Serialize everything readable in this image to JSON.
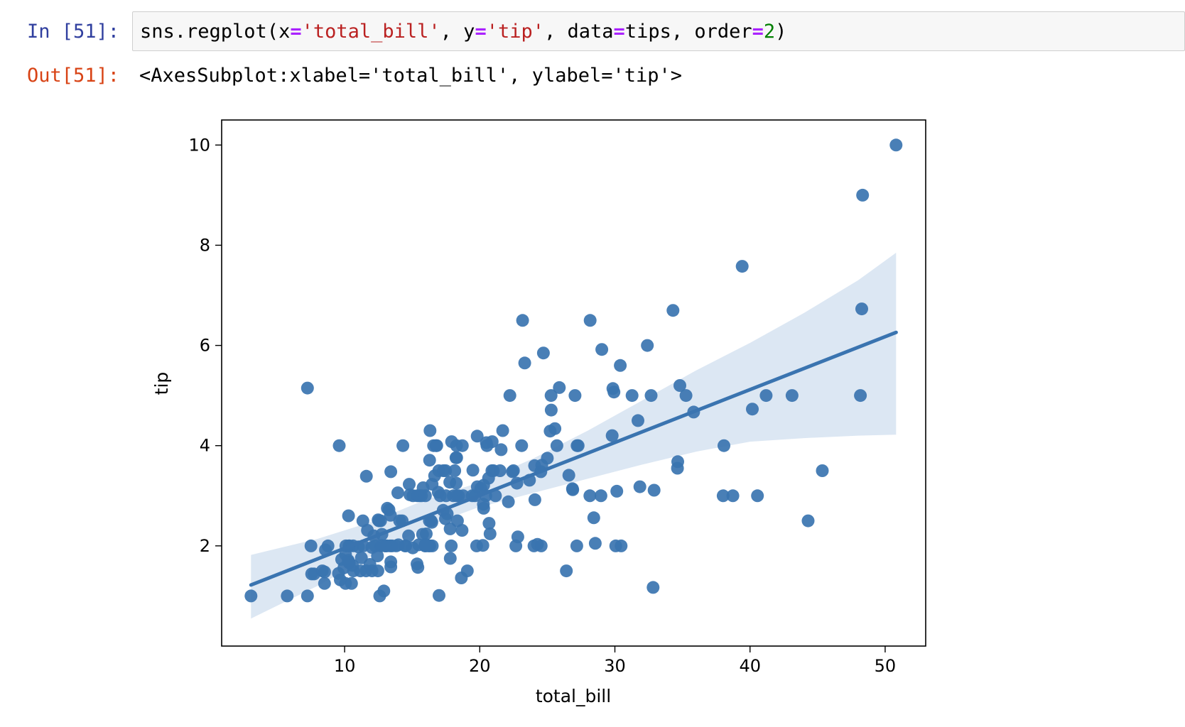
{
  "input_cell": {
    "prompt": "In [51]:",
    "code_tokens": [
      {
        "t": "sns.regplot(x",
        "c": "plain"
      },
      {
        "t": "=",
        "c": "op"
      },
      {
        "t": "'total_bill'",
        "c": "str"
      },
      {
        "t": ", y",
        "c": "plain"
      },
      {
        "t": "=",
        "c": "op"
      },
      {
        "t": "'tip'",
        "c": "str"
      },
      {
        "t": ", data",
        "c": "plain"
      },
      {
        "t": "=",
        "c": "op"
      },
      {
        "t": "tips, order",
        "c": "plain"
      },
      {
        "t": "=",
        "c": "op"
      },
      {
        "t": "2",
        "c": "num"
      },
      {
        "t": ")",
        "c": "plain"
      }
    ]
  },
  "output_cell": {
    "prompt": "Out[51]:",
    "text": "<AxesSubplot:xlabel='total_bill', ylabel='tip'>"
  },
  "colors": {
    "point": "#3a74b0",
    "line": "#3a74b0",
    "band": "#dce7f3"
  },
  "chart_data": {
    "type": "scatter",
    "xlabel": "total_bill",
    "ylabel": "tip",
    "xlim": [
      0.9,
      53.0
    ],
    "ylim": [
      0.0,
      10.5
    ],
    "xticks": [
      10,
      20,
      30,
      40,
      50
    ],
    "yticks": [
      2,
      4,
      6,
      8,
      10
    ],
    "grid": false,
    "points": [
      [
        3.07,
        1.0
      ],
      [
        5.75,
        1.0
      ],
      [
        7.25,
        1.0
      ],
      [
        7.25,
        5.15
      ],
      [
        7.51,
        2.0
      ],
      [
        7.56,
        1.44
      ],
      [
        7.74,
        1.44
      ],
      [
        8.35,
        1.5
      ],
      [
        8.51,
        1.25
      ],
      [
        8.52,
        1.48
      ],
      [
        8.58,
        1.92
      ],
      [
        8.77,
        2.0
      ],
      [
        9.55,
        1.45
      ],
      [
        9.6,
        4.0
      ],
      [
        9.68,
        1.32
      ],
      [
        9.78,
        1.73
      ],
      [
        9.94,
        1.56
      ],
      [
        10.07,
        1.83
      ],
      [
        10.07,
        1.25
      ],
      [
        10.09,
        2.0
      ],
      [
        10.27,
        1.71
      ],
      [
        10.29,
        2.6
      ],
      [
        10.33,
        1.67
      ],
      [
        10.33,
        2.0
      ],
      [
        10.34,
        1.66
      ],
      [
        10.34,
        2.0
      ],
      [
        10.51,
        1.25
      ],
      [
        10.59,
        1.61
      ],
      [
        10.63,
        2.0
      ],
      [
        10.65,
        1.5
      ],
      [
        11.02,
        1.98
      ],
      [
        11.17,
        1.5
      ],
      [
        11.24,
        1.76
      ],
      [
        11.35,
        2.5
      ],
      [
        11.38,
        2.0
      ],
      [
        11.59,
        1.5
      ],
      [
        11.61,
        3.39
      ],
      [
        11.69,
        2.31
      ],
      [
        11.87,
        1.63
      ],
      [
        12.02,
        1.97
      ],
      [
        12.03,
        1.5
      ],
      [
        12.16,
        2.2
      ],
      [
        12.26,
        2.0
      ],
      [
        12.43,
        1.8
      ],
      [
        12.46,
        1.5
      ],
      [
        12.48,
        2.52
      ],
      [
        12.54,
        2.5
      ],
      [
        12.6,
        1.0
      ],
      [
        12.66,
        2.5
      ],
      [
        12.69,
        2.0
      ],
      [
        12.74,
        2.01
      ],
      [
        12.76,
        2.23
      ],
      [
        12.9,
        1.1
      ],
      [
        13.0,
        2.0
      ],
      [
        13.03,
        2.0
      ],
      [
        13.13,
        2.0
      ],
      [
        13.16,
        2.75
      ],
      [
        13.28,
        2.72
      ],
      [
        13.37,
        2.0
      ],
      [
        13.39,
        2.61
      ],
      [
        13.42,
        1.58
      ],
      [
        13.42,
        3.48
      ],
      [
        13.42,
        1.68
      ],
      [
        13.51,
        2.0
      ],
      [
        13.81,
        2.0
      ],
      [
        13.94,
        3.06
      ],
      [
        13.98,
        2.02
      ],
      [
        14.07,
        2.5
      ],
      [
        14.26,
        2.5
      ],
      [
        14.31,
        4.0
      ],
      [
        14.48,
        2.0
      ],
      [
        14.52,
        2.0
      ],
      [
        14.73,
        2.2
      ],
      [
        14.78,
        3.23
      ],
      [
        14.83,
        3.02
      ],
      [
        15.04,
        1.96
      ],
      [
        15.06,
        3.0
      ],
      [
        15.36,
        1.64
      ],
      [
        15.38,
        3.0
      ],
      [
        15.42,
        1.57
      ],
      [
        15.48,
        2.02
      ],
      [
        15.53,
        3.0
      ],
      [
        15.69,
        3.0
      ],
      [
        15.77,
        2.23
      ],
      [
        15.81,
        3.16
      ],
      [
        15.95,
        2.0
      ],
      [
        15.98,
        2.03
      ],
      [
        15.98,
        3.0
      ],
      [
        16.0,
        2.0
      ],
      [
        16.04,
        2.24
      ],
      [
        16.21,
        2.0
      ],
      [
        16.27,
        2.5
      ],
      [
        16.29,
        3.71
      ],
      [
        16.31,
        2.0
      ],
      [
        16.32,
        4.3
      ],
      [
        16.4,
        2.5
      ],
      [
        16.45,
        2.47
      ],
      [
        16.47,
        3.23
      ],
      [
        16.49,
        2.0
      ],
      [
        16.58,
        4.0
      ],
      [
        16.66,
        3.4
      ],
      [
        16.76,
        4.0
      ],
      [
        16.82,
        4.0
      ],
      [
        16.93,
        3.07
      ],
      [
        16.97,
        3.5
      ],
      [
        16.99,
        1.01
      ],
      [
        17.07,
        3.0
      ],
      [
        17.29,
        2.71
      ],
      [
        17.31,
        3.5
      ],
      [
        17.46,
        2.54
      ],
      [
        17.47,
        3.5
      ],
      [
        17.51,
        3.0
      ],
      [
        17.59,
        2.64
      ],
      [
        17.78,
        3.27
      ],
      [
        17.81,
        2.34
      ],
      [
        17.82,
        1.75
      ],
      [
        17.89,
        2.0
      ],
      [
        17.92,
        4.08
      ],
      [
        18.04,
        3.0
      ],
      [
        18.15,
        3.5
      ],
      [
        18.24,
        3.76
      ],
      [
        18.26,
        3.25
      ],
      [
        18.28,
        4.0
      ],
      [
        18.29,
        3.76
      ],
      [
        18.29,
        3.0
      ],
      [
        18.35,
        2.5
      ],
      [
        18.43,
        3.0
      ],
      [
        18.64,
        1.36
      ],
      [
        18.69,
        2.31
      ],
      [
        18.71,
        4.0
      ],
      [
        18.78,
        3.0
      ],
      [
        19.08,
        1.5
      ],
      [
        19.44,
        3.0
      ],
      [
        19.49,
        3.51
      ],
      [
        19.65,
        3.0
      ],
      [
        19.77,
        2.0
      ],
      [
        19.81,
        4.19
      ],
      [
        19.82,
        3.18
      ],
      [
        20.08,
        3.15
      ],
      [
        20.23,
        2.01
      ],
      [
        20.27,
        2.83
      ],
      [
        20.29,
        2.75
      ],
      [
        20.29,
        3.21
      ],
      [
        20.45,
        3.0
      ],
      [
        20.49,
        4.06
      ],
      [
        20.53,
        4.0
      ],
      [
        20.65,
        3.35
      ],
      [
        20.69,
        2.45
      ],
      [
        20.76,
        2.24
      ],
      [
        20.9,
        3.5
      ],
      [
        20.92,
        4.08
      ],
      [
        21.01,
        3.5
      ],
      [
        21.16,
        3.0
      ],
      [
        21.5,
        3.5
      ],
      [
        21.58,
        3.92
      ],
      [
        21.7,
        4.3
      ],
      [
        22.12,
        2.88
      ],
      [
        22.23,
        5.0
      ],
      [
        22.42,
        3.48
      ],
      [
        22.49,
        3.5
      ],
      [
        22.67,
        2.0
      ],
      [
        22.75,
        3.25
      ],
      [
        22.82,
        2.18
      ],
      [
        23.1,
        4.0
      ],
      [
        23.17,
        6.5
      ],
      [
        23.33,
        5.65
      ],
      [
        23.68,
        3.31
      ],
      [
        24.01,
        2.0
      ],
      [
        24.06,
        3.6
      ],
      [
        24.08,
        2.92
      ],
      [
        24.27,
        2.03
      ],
      [
        24.52,
        3.48
      ],
      [
        24.55,
        2.0
      ],
      [
        24.59,
        3.61
      ],
      [
        24.71,
        5.85
      ],
      [
        25.0,
        3.75
      ],
      [
        25.21,
        4.29
      ],
      [
        25.28,
        5.0
      ],
      [
        25.29,
        4.71
      ],
      [
        25.56,
        4.34
      ],
      [
        25.71,
        4.0
      ],
      [
        25.89,
        5.16
      ],
      [
        26.41,
        1.5
      ],
      [
        26.59,
        3.41
      ],
      [
        26.86,
        3.14
      ],
      [
        26.88,
        3.12
      ],
      [
        27.05,
        5.0
      ],
      [
        27.18,
        2.0
      ],
      [
        27.2,
        4.0
      ],
      [
        27.28,
        4.0
      ],
      [
        28.15,
        3.0
      ],
      [
        28.17,
        6.5
      ],
      [
        28.44,
        2.56
      ],
      [
        28.55,
        2.05
      ],
      [
        28.97,
        3.0
      ],
      [
        29.03,
        5.92
      ],
      [
        29.8,
        4.2
      ],
      [
        29.85,
        5.14
      ],
      [
        29.93,
        5.07
      ],
      [
        30.06,
        2.0
      ],
      [
        30.14,
        3.09
      ],
      [
        30.4,
        5.6
      ],
      [
        30.46,
        2.0
      ],
      [
        31.27,
        5.0
      ],
      [
        31.71,
        4.5
      ],
      [
        31.85,
        3.18
      ],
      [
        32.4,
        6.0
      ],
      [
        32.68,
        5.0
      ],
      [
        32.83,
        1.17
      ],
      [
        32.9,
        3.11
      ],
      [
        34.3,
        6.7
      ],
      [
        34.63,
        3.55
      ],
      [
        34.65,
        3.68
      ],
      [
        34.81,
        5.2
      ],
      [
        35.26,
        5.0
      ],
      [
        35.83,
        4.67
      ],
      [
        38.01,
        3.0
      ],
      [
        38.07,
        4.0
      ],
      [
        38.73,
        3.0
      ],
      [
        39.42,
        7.58
      ],
      [
        40.17,
        4.73
      ],
      [
        40.55,
        3.0
      ],
      [
        41.19,
        5.0
      ],
      [
        43.11,
        5.0
      ],
      [
        44.3,
        2.5
      ],
      [
        45.35,
        3.5
      ],
      [
        48.17,
        5.0
      ],
      [
        48.27,
        6.73
      ],
      [
        48.33,
        9.0
      ],
      [
        50.81,
        10.0
      ]
    ],
    "regression_line": {
      "x": [
        3.07,
        50.81
      ],
      "y": [
        1.22,
        6.26
      ]
    },
    "confidence_band": {
      "x": [
        3.07,
        8.0,
        12.0,
        16.0,
        19.8,
        24.0,
        28.0,
        32.0,
        36.0,
        40.0,
        44.0,
        48.0,
        50.81
      ],
      "upper": [
        1.82,
        2.14,
        2.48,
        2.92,
        3.25,
        3.75,
        4.3,
        4.9,
        5.5,
        6.05,
        6.65,
        7.3,
        7.85
      ],
      "lower": [
        0.55,
        1.2,
        1.8,
        2.38,
        2.76,
        3.06,
        3.34,
        3.62,
        3.88,
        4.08,
        4.15,
        4.2,
        4.22
      ]
    }
  }
}
